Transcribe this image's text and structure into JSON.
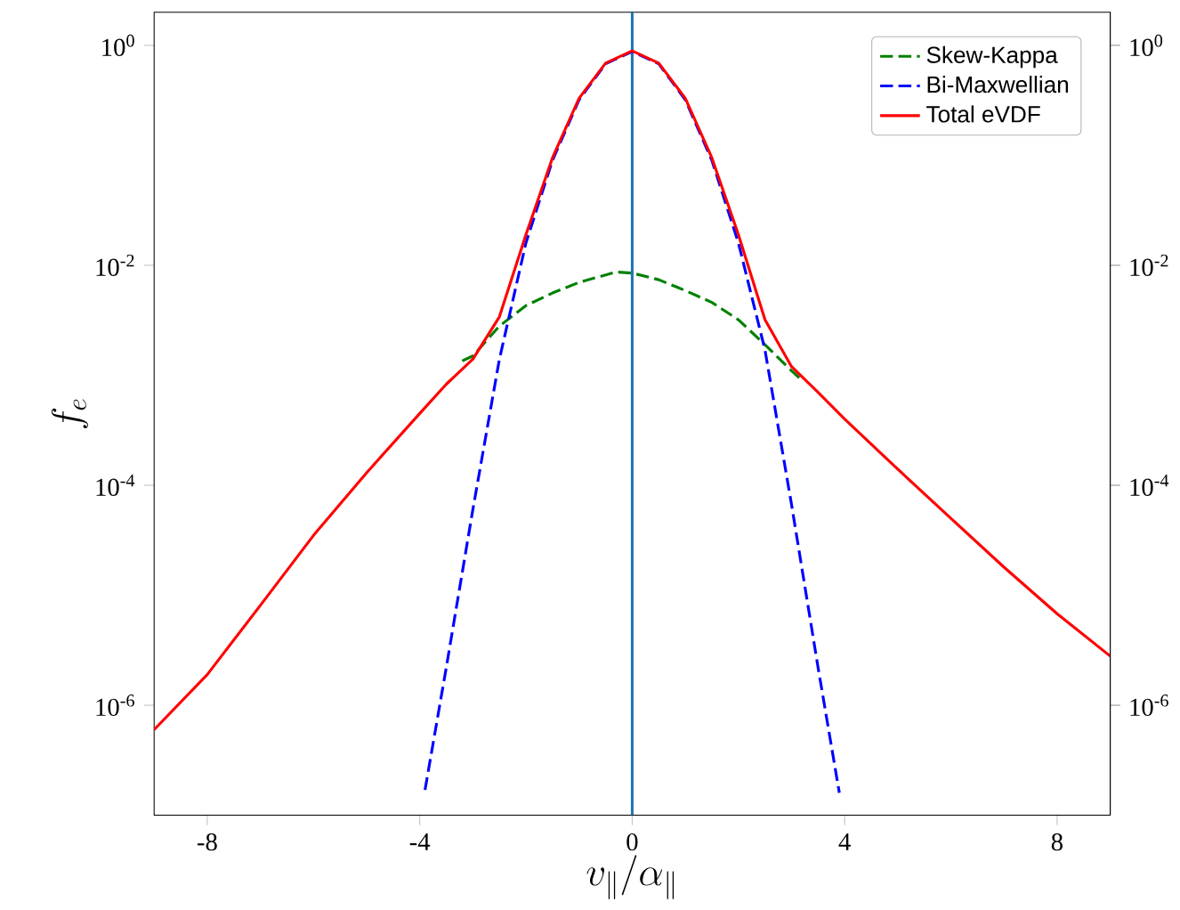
{
  "chart_data": {
    "type": "line",
    "xlabel": "v_\\parallel/\\alpha_\\parallel",
    "ylabel": "f_e",
    "log": true,
    "legend": "top right",
    "xlim": [
      -9,
      9
    ],
    "xticks": [
      -8,
      -4,
      0,
      4,
      8
    ],
    "ylim": [
      1e-07,
      2
    ],
    "yticks": [
      {
        "value": 1e-06,
        "label": "10$^{-6}$"
      },
      {
        "value": 0.0001,
        "label": "10$^{-4}$"
      },
      {
        "value": 0.01,
        "label": "10$^{-2}$"
      },
      {
        "value": 1,
        "label": "10$^{0}$"
      }
    ],
    "ref_lines": [
      {
        "axis": "x",
        "value": 0,
        "color": "#1f77b4"
      }
    ],
    "series": [
      {
        "name": "Skew-Kappa",
        "color": "#008000",
        "line_style": "dashed",
        "x": [
          -3.2,
          -3,
          -2.5,
          -2,
          -1.5,
          -1,
          -0.3,
          0,
          0.5,
          1,
          1.5,
          2,
          2.5,
          3,
          3.2
        ],
        "values": [
          0.00135,
          0.0015,
          0.0028,
          0.0043,
          0.0056,
          0.007,
          0.0087,
          0.0085,
          0.0074,
          0.0059,
          0.0046,
          0.0032,
          0.0019,
          0.0011,
          0.0009
        ]
      },
      {
        "name": "Bi-Maxwellian",
        "color": "#0000ff",
        "line_style": "dashed",
        "x": [
          -3.9,
          -3.5,
          -3,
          -2.5,
          -2,
          -1.5,
          -1,
          -0.5,
          0,
          0.5,
          1,
          1.5,
          2,
          2.5,
          3,
          3.5,
          3.9
        ],
        "values": [
          1.7e-07,
          2.2e-06,
          6e-05,
          0.0014,
          0.016,
          0.09,
          0.32,
          0.68,
          0.88,
          0.68,
          0.32,
          0.09,
          0.016,
          0.0017,
          6.7e-05,
          2.2e-06,
          1.6e-07
        ]
      },
      {
        "name": "Total eVDF",
        "color": "#ff0000",
        "line_style": "solid",
        "x": [
          -9,
          -8,
          -7,
          -6,
          -5,
          -4,
          -3.5,
          -3,
          -2.5,
          -2,
          -1.5,
          -1,
          -0.5,
          0,
          0.5,
          1,
          1.5,
          2,
          2.5,
          3,
          3.5,
          4,
          5,
          6,
          7,
          8,
          9
        ],
        "values": [
          6e-07,
          1.9e-06,
          8.1e-06,
          3.5e-05,
          0.00013,
          0.00045,
          0.00083,
          0.0014,
          0.0034,
          0.019,
          0.095,
          0.33,
          0.69,
          0.89,
          0.69,
          0.33,
          0.095,
          0.019,
          0.0032,
          0.0012,
          0.0007,
          0.0004,
          0.00014,
          5e-05,
          1.8e-05,
          6.8e-06,
          2.8e-06
        ]
      }
    ]
  }
}
